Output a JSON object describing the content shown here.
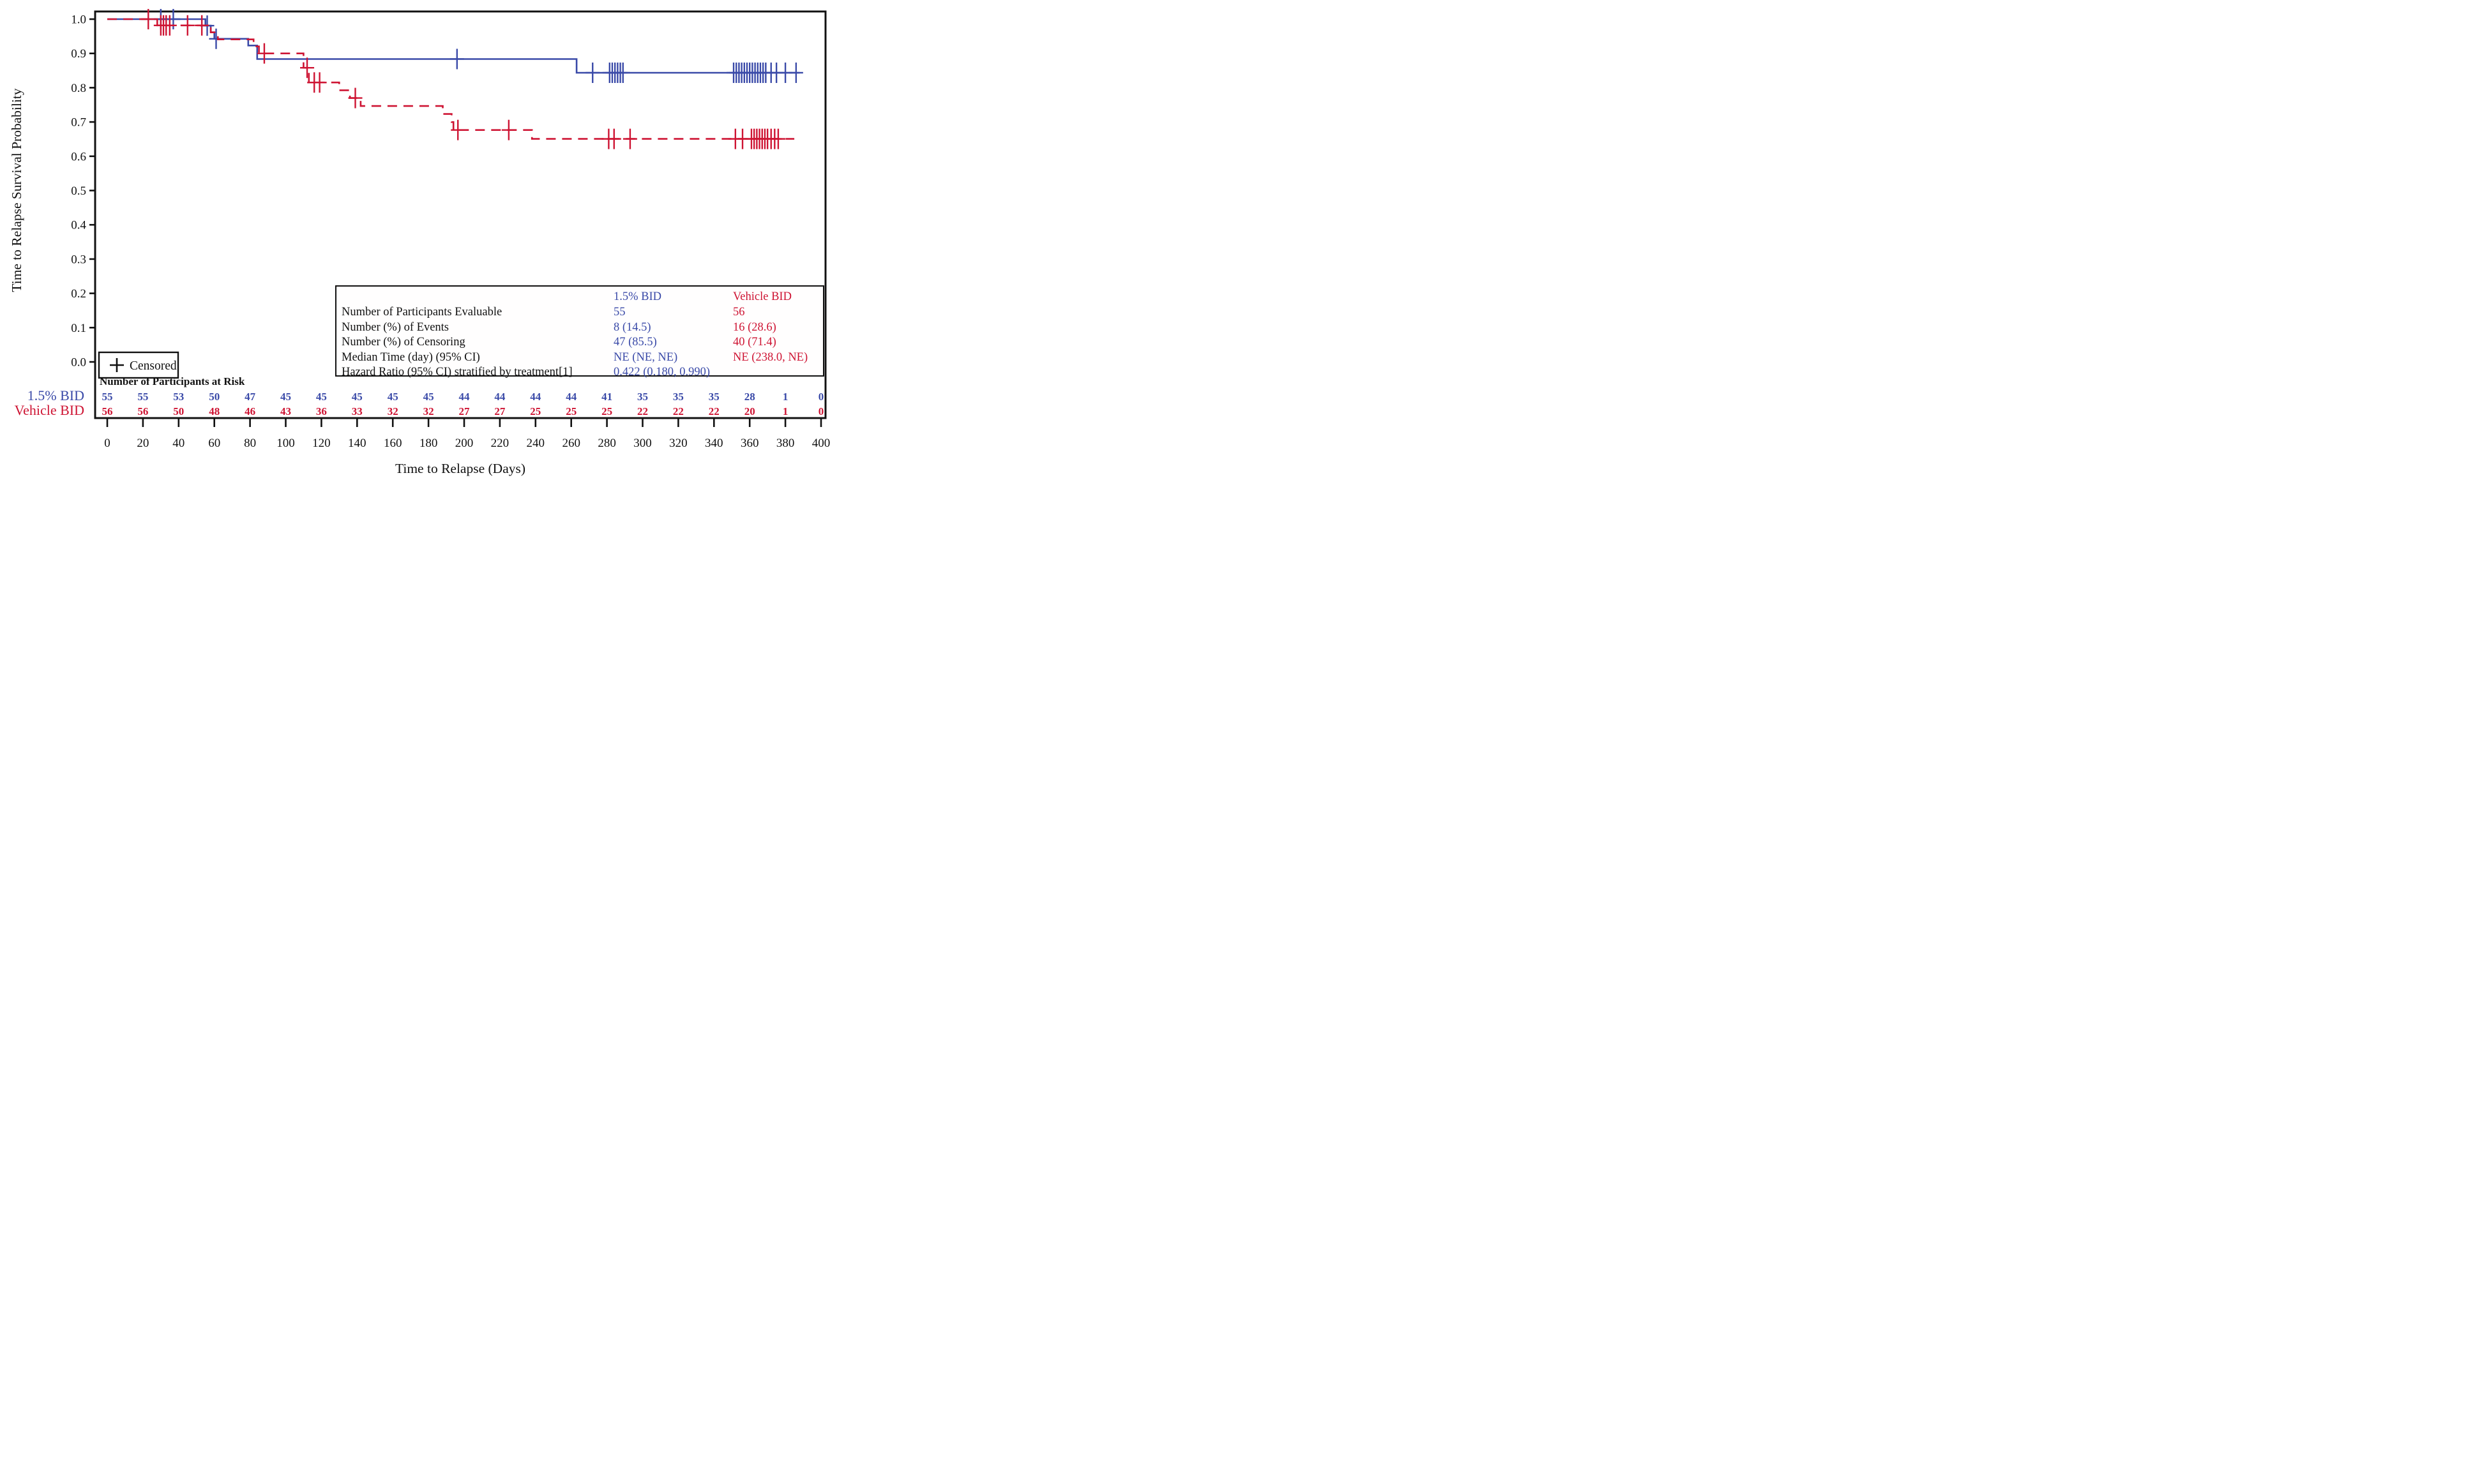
{
  "colors": {
    "treatment_blue": "#3A4AA8",
    "vehicle_red": "#CE1433",
    "axis_black": "#111111",
    "background": "#ffffff"
  },
  "axes": {
    "x": {
      "label": "Time to Relapse (Days)",
      "min": 0,
      "max": 400,
      "step": 20,
      "tick_labels": [
        "0",
        "20",
        "40",
        "60",
        "80",
        "100",
        "120",
        "140",
        "160",
        "180",
        "200",
        "220",
        "240",
        "260",
        "280",
        "300",
        "320",
        "340",
        "360",
        "380",
        "400"
      ]
    },
    "y": {
      "label": "Time to Relapse Survival Probability",
      "min": 0.0,
      "max": 1.0,
      "step": 0.1,
      "tick_labels": [
        "0.0",
        "0.1",
        "0.2",
        "0.3",
        "0.4",
        "0.5",
        "0.6",
        "0.7",
        "0.8",
        "0.9",
        "1.0"
      ]
    }
  },
  "legend": {
    "symbol": "+",
    "label": "Censored"
  },
  "chart_data": {
    "type": "line",
    "subtype": "kaplan_meier_step",
    "xlabel": "Time to Relapse (Days)",
    "ylabel": "Time to Relapse Survival Probability",
    "xlim": [
      0,
      400
    ],
    "ylim": [
      0.0,
      1.0
    ],
    "grid": false,
    "series": [
      {
        "name": "1.5% BID",
        "color": "#3A4AA8",
        "line_style": "solid",
        "points": [
          [
            0,
            1.0
          ],
          [
            55,
            1.0
          ],
          [
            55,
            0.9811
          ],
          [
            58,
            0.9811
          ],
          [
            58,
            0.9619
          ],
          [
            60,
            0.9619
          ],
          [
            60,
            0.9427
          ],
          [
            79,
            0.9427
          ],
          [
            79,
            0.923
          ],
          [
            84,
            0.923
          ],
          [
            84,
            0.8837
          ],
          [
            263,
            0.8837
          ],
          [
            263,
            0.8436
          ],
          [
            388,
            0.8436
          ]
        ],
        "censors": [
          [
            30,
            1.0
          ],
          [
            37,
            1.0
          ],
          [
            56,
            0.9811
          ],
          [
            61,
            0.9427
          ],
          [
            196,
            0.8837
          ],
          [
            272,
            0.8436
          ],
          [
            281.5,
            0.8436
          ],
          [
            283,
            0.8436
          ],
          [
            284.5,
            0.8436
          ],
          [
            286,
            0.8436
          ],
          [
            287.5,
            0.8436
          ],
          [
            289,
            0.8436
          ],
          [
            351,
            0.8436
          ],
          [
            352.5,
            0.8436
          ],
          [
            354,
            0.8436
          ],
          [
            355.5,
            0.8436
          ],
          [
            357,
            0.8436
          ],
          [
            358.5,
            0.8436
          ],
          [
            360,
            0.8436
          ],
          [
            361.5,
            0.8436
          ],
          [
            363,
            0.8436
          ],
          [
            364.5,
            0.8436
          ],
          [
            366,
            0.8436
          ],
          [
            367.5,
            0.8436
          ],
          [
            369,
            0.8436
          ],
          [
            372,
            0.8436
          ],
          [
            375,
            0.8436
          ],
          [
            380,
            0.8436
          ],
          [
            386,
            0.8436
          ]
        ]
      },
      {
        "name": "Vehicle BID",
        "color": "#CE1433",
        "line_style": "dashed",
        "points": [
          [
            0,
            1.0
          ],
          [
            28,
            1.0
          ],
          [
            28,
            0.9818
          ],
          [
            58,
            0.9818
          ],
          [
            58,
            0.9614
          ],
          [
            62,
            0.9614
          ],
          [
            62,
            0.9409
          ],
          [
            82,
            0.9409
          ],
          [
            82,
            0.9204
          ],
          [
            85,
            0.9204
          ],
          [
            85,
            0.9
          ],
          [
            110,
            0.9
          ],
          [
            110,
            0.8581
          ],
          [
            113,
            0.8581
          ],
          [
            113,
            0.8152
          ],
          [
            130,
            0.8152
          ],
          [
            130,
            0.7926
          ],
          [
            136,
            0.7926
          ],
          [
            136,
            0.7699
          ],
          [
            142,
            0.7699
          ],
          [
            142,
            0.7466
          ],
          [
            188,
            0.7466
          ],
          [
            188,
            0.7233
          ],
          [
            193,
            0.7233
          ],
          [
            193,
            0.6999
          ],
          [
            194,
            0.6999
          ],
          [
            194,
            0.6766
          ],
          [
            238,
            0.6766
          ],
          [
            238,
            0.6506
          ],
          [
            385,
            0.6506
          ]
        ],
        "censors": [
          [
            23,
            1.0
          ],
          [
            30,
            0.9818
          ],
          [
            31.5,
            0.9818
          ],
          [
            33,
            0.9818
          ],
          [
            35,
            0.9818
          ],
          [
            45,
            0.9818
          ],
          [
            53,
            0.9818
          ],
          [
            88,
            0.9
          ],
          [
            112,
            0.8581
          ],
          [
            116,
            0.8152
          ],
          [
            119,
            0.8152
          ],
          [
            139,
            0.7699
          ],
          [
            196.5,
            0.6766
          ],
          [
            225,
            0.6766
          ],
          [
            281,
            0.6506
          ],
          [
            284,
            0.6506
          ],
          [
            293,
            0.6506
          ],
          [
            352,
            0.6506
          ],
          [
            356,
            0.6506
          ],
          [
            361,
            0.6506
          ],
          [
            362.5,
            0.6506
          ],
          [
            364,
            0.6506
          ],
          [
            365.5,
            0.6506
          ],
          [
            367,
            0.6506
          ],
          [
            368.5,
            0.6506
          ],
          [
            370,
            0.6506
          ],
          [
            372,
            0.6506
          ],
          [
            374,
            0.6506
          ],
          [
            376,
            0.6506
          ]
        ]
      }
    ]
  },
  "at_risk_table": {
    "header": "Number of Participants at Risk",
    "times": [
      0,
      20,
      40,
      60,
      80,
      100,
      120,
      140,
      160,
      180,
      200,
      220,
      240,
      260,
      280,
      300,
      320,
      340,
      360,
      380,
      400
    ],
    "rows": [
      {
        "label": "1.5% BID",
        "color": "#3A4AA8",
        "values": [
          "55",
          "55",
          "53",
          "50",
          "47",
          "45",
          "45",
          "45",
          "45",
          "45",
          "44",
          "44",
          "44",
          "44",
          "41",
          "35",
          "35",
          "35",
          "28",
          "1",
          "0"
        ]
      },
      {
        "label": "Vehicle BID",
        "color": "#CE1433",
        "values": [
          "56",
          "56",
          "50",
          "48",
          "46",
          "43",
          "36",
          "33",
          "32",
          "32",
          "27",
          "27",
          "25",
          "25",
          "25",
          "22",
          "22",
          "22",
          "20",
          "1",
          "0"
        ]
      }
    ]
  },
  "stats_table": {
    "header": {
      "col1": "1.5% BID",
      "col2": "Vehicle BID"
    },
    "rows": [
      {
        "label": "Number of Participants Evaluable",
        "col1": "55",
        "col2": "56"
      },
      {
        "label": "Number (%) of Events",
        "col1": "8 (14.5)",
        "col2": "16 (28.6)"
      },
      {
        "label": "Number (%) of Censoring",
        "col1": "47 (85.5)",
        "col2": "40 (71.4)"
      },
      {
        "label": "Median Time (day) (95% CI)",
        "col1": "NE (NE, NE)",
        "col2": "NE (238.0, NE)"
      },
      {
        "label": "Hazard Ratio (95% CI) stratified by treatment[1]",
        "col1": "0.422 (0.180, 0.990)",
        "col2": ""
      }
    ]
  }
}
